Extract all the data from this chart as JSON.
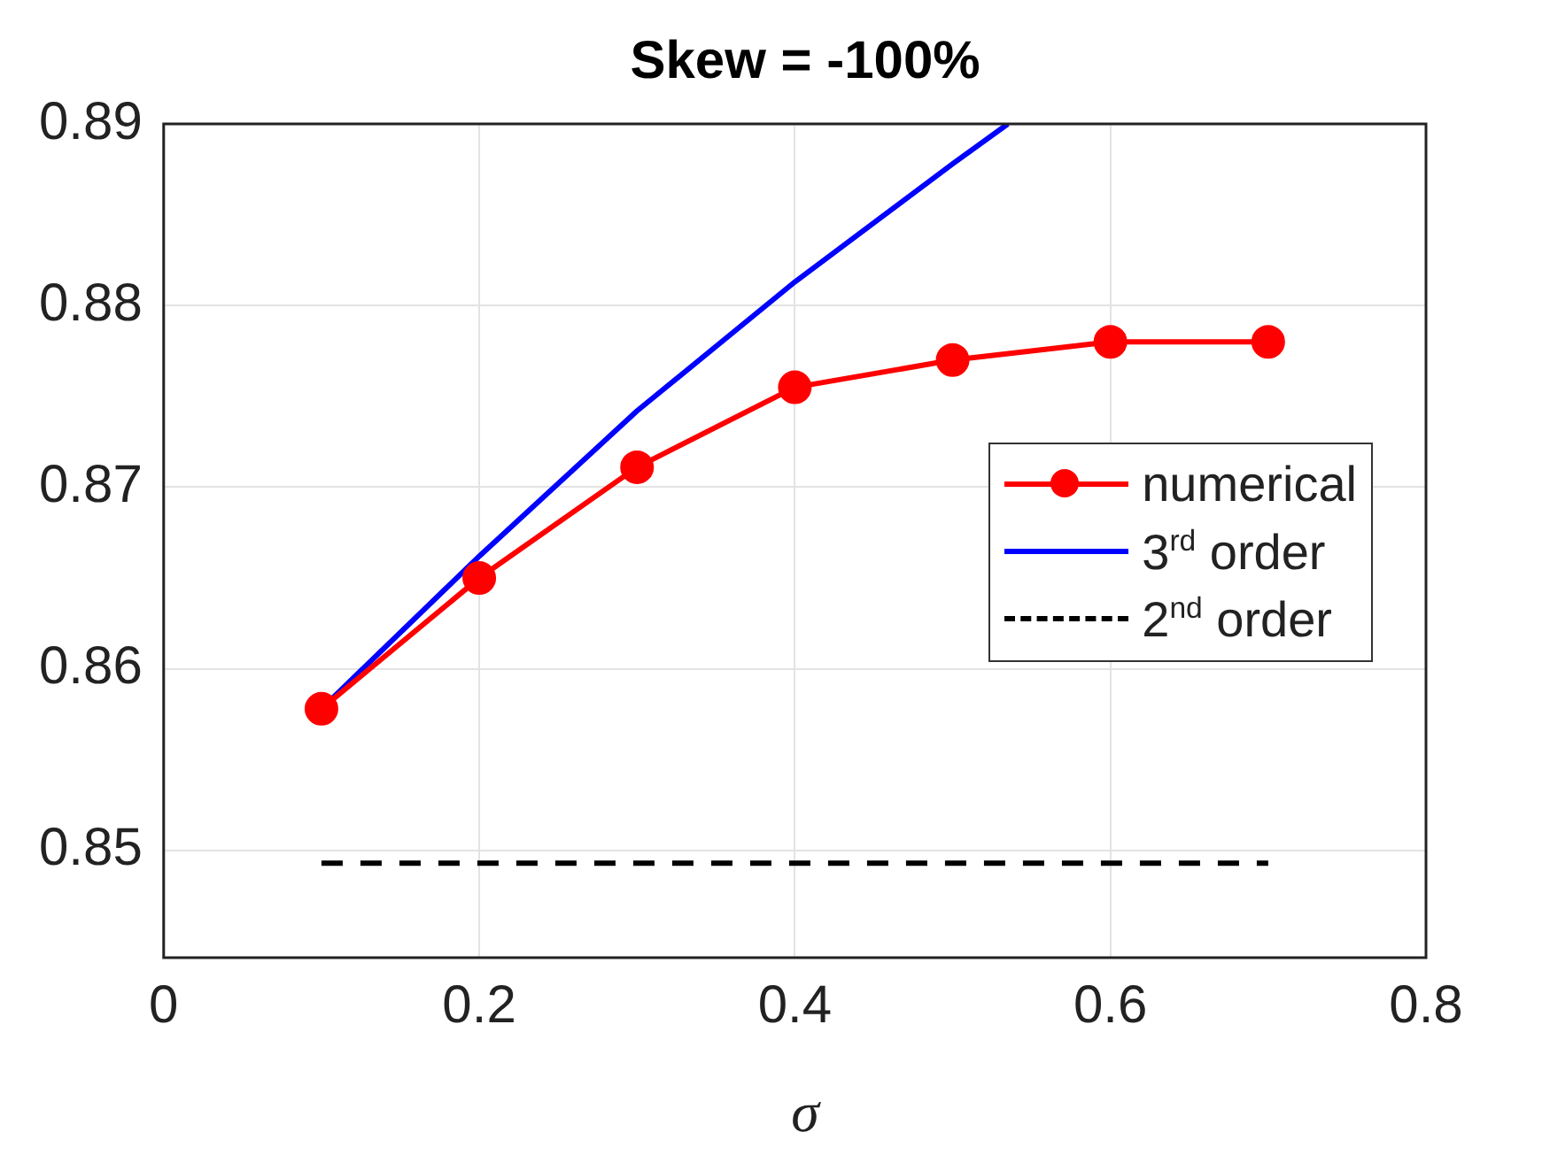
{
  "chart_data": {
    "type": "line",
    "title": "Skew = -100%",
    "xlabel": "σ",
    "xlim": [
      0,
      0.8
    ],
    "xticks": [
      0,
      0.2,
      0.4,
      0.6,
      0.8
    ],
    "ylim": [
      0.8441,
      0.89
    ],
    "yticks": [
      0.85,
      0.86,
      0.87,
      0.88,
      0.89
    ],
    "grid": true,
    "legend": "right",
    "series": [
      {
        "name": "numerical",
        "color": "#ff0000",
        "marker": "circle",
        "line_style": "solid",
        "x": [
          0.1,
          0.2,
          0.3,
          0.4,
          0.5,
          0.6,
          0.7
        ],
        "values": [
          0.8578,
          0.865,
          0.8711,
          0.8755,
          0.877,
          0.878,
          0.878
        ]
      },
      {
        "name": "3$^{rd}$ order",
        "color": "#0000ff",
        "marker": "none",
        "line_style": "solid",
        "x": [
          0.1,
          0.2,
          0.3,
          0.4,
          0.5,
          0.535
        ],
        "values": [
          0.8578,
          0.8662,
          0.8742,
          0.8813,
          0.8878,
          0.89
        ]
      },
      {
        "name": "2$^{nd}$ order",
        "color": "#000000",
        "marker": "none",
        "line_style": "dashed",
        "x": [
          0.1,
          0.7
        ],
        "values": [
          0.8493,
          0.8493
        ]
      }
    ]
  }
}
